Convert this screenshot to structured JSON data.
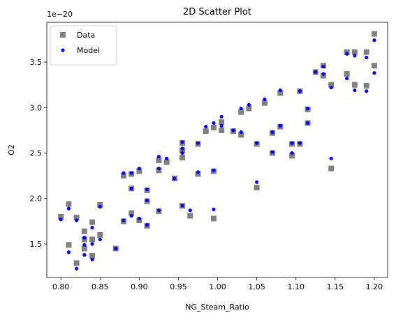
{
  "chart_data": {
    "type": "scatter",
    "title": "2D Scatter Plot",
    "x_label": "NG_Steam_Ratio",
    "y_label": "O2",
    "y_offset_label": "1e−20",
    "legend": "upper left",
    "xlim": [
      0.782,
      1.217
    ],
    "ylim": [
      1.132,
      3.937
    ],
    "xticks": [
      {
        "value": 0.8,
        "label": "0.80"
      },
      {
        "value": 0.85,
        "label": "0.85"
      },
      {
        "value": 0.9,
        "label": "0.90"
      },
      {
        "value": 0.95,
        "label": "0.95"
      },
      {
        "value": 1.0,
        "label": "1.00"
      },
      {
        "value": 1.05,
        "label": "1.05"
      },
      {
        "value": 1.1,
        "label": "1.10"
      },
      {
        "value": 1.15,
        "label": "1.15"
      },
      {
        "value": 1.2,
        "label": "1.20"
      }
    ],
    "yticks": [
      1.5,
      {
        "value": 2,
        "label": "2.0"
      },
      2.5,
      {
        "value": 3,
        "label": "3.0"
      },
      3.5
    ],
    "x": [
      0.8,
      0.81,
      0.81,
      0.82,
      0.82,
      0.83,
      0.83,
      0.83,
      0.84,
      0.84,
      0.84,
      0.85,
      0.85,
      0.87,
      0.88,
      0.88,
      0.89,
      0.89,
      0.89,
      0.9,
      0.9,
      0.91,
      0.91,
      0.91,
      0.925,
      0.925,
      0.925,
      0.935,
      0.945,
      0.955,
      0.955,
      0.955,
      0.955,
      0.965,
      0.975,
      0.975,
      0.985,
      0.995,
      0.995,
      0.995,
      1.005,
      1.005,
      1.02,
      1.03,
      1.03,
      1.04,
      1.05,
      1.05,
      1.06,
      1.07,
      1.07,
      1.08,
      1.08,
      1.095,
      1.095,
      1.105,
      1.105,
      1.115,
      1.115,
      1.125,
      1.135,
      1.135,
      1.145,
      1.145,
      1.165,
      1.165,
      1.175,
      1.175,
      1.19,
      1.19,
      1.2,
      1.2
    ],
    "series": [
      {
        "name": "Data",
        "color": "#808080",
        "marker": "square",
        "values": [
          1.8,
          1.94,
          1.49,
          1.79,
          1.29,
          1.64,
          1.55,
          1.45,
          1.74,
          1.55,
          1.37,
          1.93,
          1.6,
          1.45,
          2.25,
          1.75,
          2.11,
          1.84,
          2.27,
          2.3,
          1.76,
          2.09,
          1.97,
          1.7,
          2.42,
          2.31,
          1.86,
          2.4,
          2.22,
          2.45,
          2.53,
          2.61,
          1.92,
          1.81,
          2.6,
          2.27,
          2.74,
          2.78,
          2.3,
          1.78,
          2.75,
          2.84,
          2.74,
          2.7,
          2.95,
          2.99,
          2.6,
          2.12,
          3.05,
          2.72,
          2.5,
          2.79,
          3.16,
          2.6,
          2.47,
          2.6,
          3.18,
          2.98,
          2.83,
          3.39,
          3.46,
          3.35,
          3.25,
          2.33,
          3.61,
          3.37,
          3.61,
          3.25,
          3.61,
          3.24,
          3.81,
          3.46
        ]
      },
      {
        "name": "Model",
        "color": "#0000ff",
        "marker": "circle",
        "values": [
          1.77,
          1.89,
          1.41,
          1.76,
          1.23,
          1.57,
          1.49,
          1.38,
          1.68,
          1.5,
          1.33,
          1.91,
          1.55,
          1.45,
          2.28,
          1.76,
          2.11,
          1.81,
          2.28,
          2.33,
          1.78,
          2.1,
          1.98,
          1.71,
          2.46,
          2.33,
          1.87,
          2.44,
          2.22,
          2.5,
          2.55,
          2.62,
          1.92,
          1.87,
          2.61,
          2.29,
          2.79,
          2.83,
          2.31,
          1.88,
          2.8,
          2.9,
          2.75,
          2.73,
          2.99,
          3.03,
          2.61,
          2.18,
          3.09,
          2.73,
          2.51,
          2.8,
          3.19,
          2.61,
          2.5,
          2.61,
          3.18,
          2.99,
          2.83,
          3.39,
          3.45,
          3.37,
          3.22,
          2.44,
          3.59,
          3.32,
          3.57,
          3.19,
          3.55,
          3.18,
          3.74,
          3.38
        ]
      }
    ]
  }
}
